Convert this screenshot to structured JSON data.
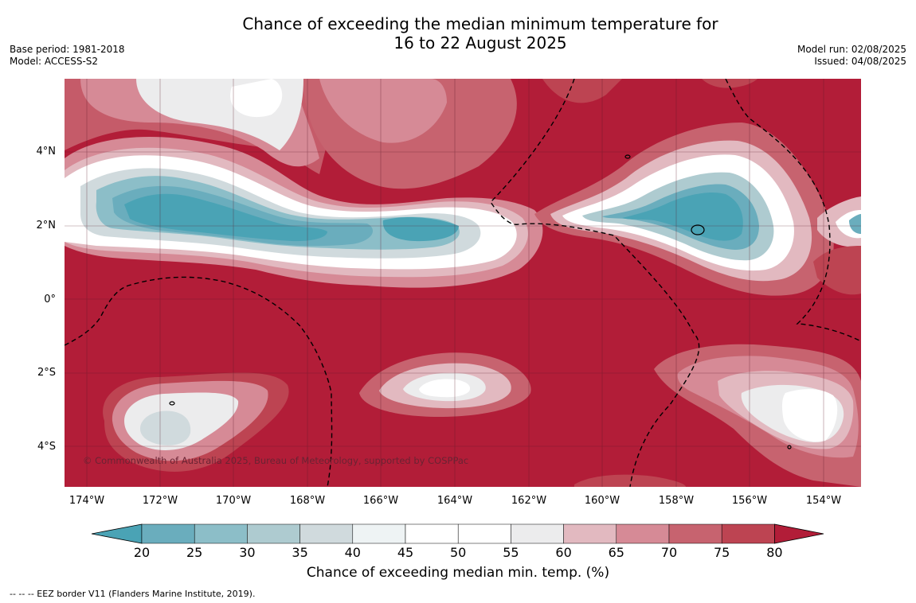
{
  "title": {
    "line1": "Chance of exceeding the median minimum temperature for",
    "line2": "16 to 22 August 2025"
  },
  "meta_left": {
    "base_period": "Base period: 1981-2018",
    "model": "Model: ACCESS-S2"
  },
  "meta_right": {
    "model_run": "Model run: 02/08/2025",
    "issued": "Issued: 04/08/2025"
  },
  "map": {
    "copyright": "© Commonwealth of Australia 2025, Bureau of Meteorology, supported by COSPPac",
    "lat_labels": [
      "4°N",
      "2°N",
      "0°",
      "2°S",
      "4°S"
    ],
    "lon_labels": [
      "174°W",
      "172°W",
      "170°W",
      "168°W",
      "166°W",
      "164°W",
      "162°W",
      "160°W",
      "158°W",
      "156°W",
      "154°W"
    ],
    "background_color": "#b21d38"
  },
  "colorbar": {
    "label": "Chance of exceeding median min. temp. (%)",
    "ticks": [
      "20",
      "25",
      "30",
      "35",
      "40",
      "45",
      "50",
      "55",
      "60",
      "65",
      "70",
      "75",
      "80"
    ],
    "colors": [
      "#4aa3b5",
      "#6aadbd",
      "#8cbec8",
      "#aecbd0",
      "#d0dadd",
      "#eef3f4",
      "#ffffff",
      "#ffffff",
      "#ececed",
      "#e2b9c0",
      "#d68a96",
      "#c7636f",
      "#bd4452",
      "#b21d38"
    ]
  },
  "footnote": "--  --  -- EEZ border V11 (Flanders Marine Institute, 2019)."
}
